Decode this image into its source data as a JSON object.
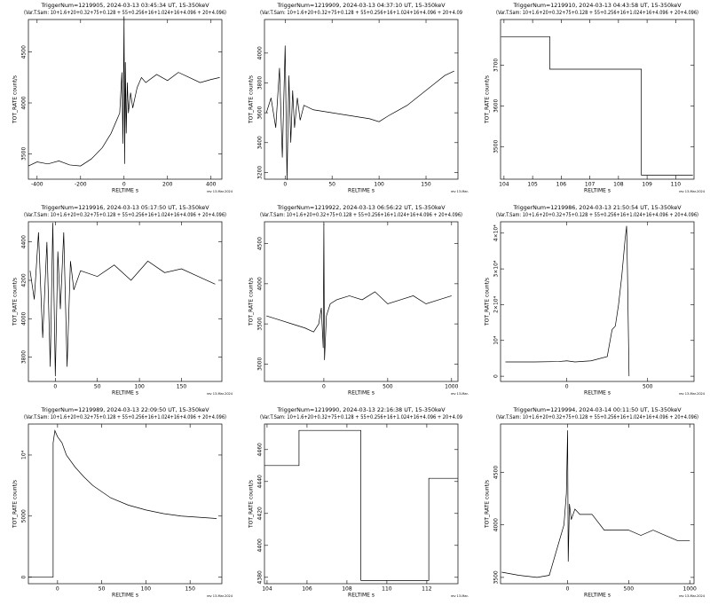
{
  "chart_data": [
    {
      "type": "line",
      "title": "TriggerNum=1219905, 2024-03-13 03:45:34 UT, 15-350keV",
      "subtitle": "(Var.T.Sam: 10+1.6+20+0.32+75+0.128  +  55+0.256+16+1.024+16+4.096  +  20+4.096)",
      "x_label": "RELTIME  s",
      "y_label": "TOT_RATE  count/s",
      "footer": "rev 13-Mar-2024",
      "color": "#000",
      "xlim": [
        -440,
        450
      ],
      "ylim": [
        3250,
        4820
      ],
      "xticks": [
        -400,
        -200,
        0,
        200,
        400
      ],
      "yticks": [
        3500,
        4000,
        4500
      ],
      "x": [
        -440,
        -400,
        -350,
        -300,
        -250,
        -200,
        -150,
        -100,
        -60,
        -40,
        -20,
        -10,
        -5,
        0,
        3,
        6,
        10,
        15,
        20,
        30,
        40,
        60,
        80,
        100,
        150,
        200,
        250,
        300,
        350,
        400,
        440
      ],
      "values": [
        3380,
        3420,
        3400,
        3430,
        3390,
        3380,
        3450,
        3560,
        3700,
        3800,
        3900,
        4300,
        3600,
        4850,
        3400,
        4400,
        3700,
        4200,
        3900,
        4100,
        3950,
        4150,
        4250,
        4200,
        4280,
        4220,
        4300,
        4250,
        4200,
        4230,
        4250
      ]
    },
    {
      "type": "line",
      "title": "TriggerNum=1219909, 2024-03-13 04:37:10 UT, 15-350keV",
      "subtitle": "(Var.T.Sam: 10+1.6+20+0.32+75+0.128  +  55+0.256+16+1.024+16+4.096  +  20+4.09",
      "x_label": "RELTIME  s",
      "y_label": "TOT_RATE  count/s",
      "footer": "rev 13-Mar-",
      "color": "#000",
      "xlim": [
        -22,
        184
      ],
      "ylim": [
        3155,
        4225
      ],
      "xticks": [
        0,
        50,
        100,
        150
      ],
      "yticks": [
        3200,
        3400,
        3600,
        3800,
        4000
      ],
      "x": [
        -20,
        -15,
        -10,
        -6,
        -3,
        0,
        2,
        4,
        6,
        8,
        10,
        13,
        16,
        20,
        30,
        50,
        70,
        90,
        100,
        110,
        130,
        150,
        160,
        170,
        180
      ],
      "values": [
        3600,
        3700,
        3500,
        3900,
        3300,
        4050,
        3150,
        3850,
        3400,
        3750,
        3500,
        3700,
        3550,
        3650,
        3620,
        3600,
        3580,
        3560,
        3540,
        3580,
        3650,
        3750,
        3800,
        3850,
        3880
      ]
    },
    {
      "type": "line",
      "title": "TriggerNum=1219910, 2024-03-13 04:43:58 UT, 15-350keV",
      "subtitle": "(Var.T.Sam: 10+1.6+20+0.32+75+0.128  +  55+0.256+16+1.024+16+4.096  +  20+4.096)",
      "x_label": "RELTIME  s",
      "y_label": "TOT_RATE  count/s",
      "footer": "rev 13-Mar-2024",
      "color": "#000",
      "xlim": [
        103.88,
        110.64
      ],
      "ylim": [
        3420,
        3812
      ],
      "xticks": [
        104,
        105,
        106,
        107,
        108,
        109,
        110
      ],
      "yticks": [
        3500,
        3600,
        3700
      ],
      "x": [
        103.9,
        105.6,
        105.6,
        108.8,
        108.8,
        110.6
      ],
      "values": [
        3770,
        3770,
        3690,
        3690,
        3430,
        3430
      ]
    },
    {
      "type": "line",
      "title": "TriggerNum=1219916, 2024-03-13 05:17:50 UT, 15-350keV",
      "subtitle": "(Var.T.Sam: 10+1.6+20+0.32+75+0.128  +  55+0.256+16+1.024+16+4.096  +  20+4.096)",
      "x_label": "RELTIME  s",
      "y_label": "TOT_RATE  count/s",
      "footer": "rev 13-Mar-2024",
      "color": "#000",
      "xlim": [
        -32,
        198
      ],
      "ylim": [
        3673,
        4505
      ],
      "xticks": [
        0,
        50,
        100,
        150
      ],
      "yticks": [
        3800,
        4000,
        4200,
        4400
      ],
      "x": [
        -30,
        -25,
        -20,
        -15,
        -10,
        -6,
        -3,
        0,
        3,
        6,
        10,
        14,
        18,
        22,
        30,
        50,
        70,
        90,
        110,
        130,
        150,
        170,
        190
      ],
      "values": [
        4250,
        4100,
        4450,
        3900,
        4400,
        3750,
        4500,
        3700,
        4350,
        4050,
        4450,
        3750,
        4300,
        4150,
        4250,
        4220,
        4280,
        4200,
        4300,
        4240,
        4260,
        4220,
        4180
      ]
    },
    {
      "type": "line",
      "title": "TriggerNum=1219922, 2024-03-13 06:56:22 UT, 15-350keV",
      "subtitle": "(Var.T.Sam: 10+1.6+20+0.32+75+0.128  +  55+0.256+16+1.024+16+4.096  +  20+4.096)",
      "x_label": "RELTIME  s",
      "y_label": "TOT_RATE  count/s",
      "footer": "rev 13-Mar-",
      "color": "#000",
      "xlim": [
        -465,
        1050
      ],
      "ylim": [
        2783,
        4772
      ],
      "xticks": [
        0,
        500,
        1000
      ],
      "yticks": [
        3000,
        3500,
        4000,
        4500
      ],
      "x": [
        -450,
        -350,
        -250,
        -150,
        -80,
        -40,
        -20,
        -5,
        0,
        5,
        20,
        50,
        100,
        200,
        300,
        400,
        500,
        600,
        700,
        800,
        900,
        1000
      ],
      "values": [
        3600,
        3550,
        3500,
        3450,
        3400,
        3500,
        3700,
        3200,
        4750,
        3050,
        3600,
        3750,
        3800,
        3850,
        3800,
        3900,
        3750,
        3800,
        3850,
        3750,
        3800,
        3850
      ]
    },
    {
      "type": "line",
      "title": "TriggerNum=1219986, 2024-03-13 21:50:54 UT, 15-350keV",
      "subtitle": "(Var.T.Sam: 10+1.6+20+0.32+75+0.128  +  55+0.256+16+1.024+16+4.096  +  20+4.096)",
      "x_label": "RELTIME  s",
      "y_label": "TOT_RATE  count/s",
      "footer": "rev 13-Mar-2024",
      "color": "#000",
      "xlim": [
        -410,
        787
      ],
      "ylim": [
        -1460,
        43170
      ],
      "xticks": [
        0,
        500
      ],
      "yticks": [
        0,
        {
          "value": 10000,
          "label": "10⁴"
        },
        {
          "value": 20000,
          "label": "2×10⁴"
        },
        {
          "value": 30000,
          "label": "3×10⁴"
        },
        {
          "value": 40000,
          "label": "4×10⁴"
        }
      ],
      "x": [
        -380,
        -200,
        -50,
        0,
        50,
        150,
        250,
        280,
        300,
        320,
        340,
        360,
        370,
        375,
        385
      ],
      "values": [
        4000,
        4000,
        4100,
        4300,
        4000,
        4300,
        5500,
        13000,
        14000,
        20000,
        28000,
        38000,
        42000,
        30000,
        0
      ]
    },
    {
      "type": "line",
      "title": "TriggerNum=1219989, 2024-03-13 22:09:50 UT, 15-350keV",
      "subtitle": "(Var.T.Sam: 10+1.6+20+0.32+75+0.128  +  55+0.256+16+1.024+16+4.096  +  20+4.096)",
      "x_label": "RELTIME  s",
      "y_label": "TOT_RATE  count/s",
      "footer": "rev 13-Mar-2024",
      "color": "#000",
      "xlim": [
        -33,
        186
      ],
      "ylim": [
        -540,
        12540
      ],
      "xticks": [
        0,
        50,
        100,
        150
      ],
      "yticks": [
        0,
        5000,
        {
          "value": 10000,
          "label": "10⁴"
        }
      ],
      "x": [
        -33,
        -5,
        -5,
        -3,
        0,
        5,
        10,
        20,
        30,
        40,
        50,
        60,
        80,
        100,
        120,
        140,
        160,
        180
      ],
      "values": [
        0,
        0,
        11000,
        12000,
        11500,
        11000,
        10000,
        9000,
        8200,
        7500,
        7000,
        6500,
        5900,
        5500,
        5200,
        5000,
        4900,
        4800
      ]
    },
    {
      "type": "line",
      "title": "TriggerNum=1219990, 2024-03-13 22:16:38 UT, 15-350keV",
      "subtitle": "(Var.T.Sam: 10+1.6+20+0.32+75+0.128  +  55+0.256+16+1.024+16+4.096  +  20+4.09",
      "x_label": "RELTIME  s",
      "y_label": "TOT_RATE  count/s",
      "footer": "rev 13-Mar-",
      "color": "#000",
      "xlim": [
        103.87,
        113.56
      ],
      "ylim": [
        4376,
        4476
      ],
      "xticks": [
        104,
        106,
        108,
        110,
        112
      ],
      "yticks": [
        4380,
        4400,
        4420,
        4440,
        4460
      ],
      "x": [
        103.87,
        105.6,
        105.6,
        108.7,
        108.7,
        112.1,
        112.1,
        113.56
      ],
      "values": [
        4450,
        4450,
        4472,
        4472,
        4378,
        4378,
        4442,
        4442
      ]
    },
    {
      "type": "line",
      "title": "TriggerNum=1219994, 2024-03-14 00:11:50 UT, 15-350keV",
      "subtitle": "(Var.T.Sam: 10+1.6+20+0.32+75+0.128  +  55+0.256+16+1.024+16+4.096  +  20+4.096)",
      "x_label": "RELTIME  s",
      "y_label": "TOT_RATE  count/s",
      "footer": "rev 13-Mar-2024",
      "color": "#000",
      "xlim": [
        -549,
        1035
      ],
      "ylim": [
        3440,
        4960
      ],
      "xticks": [
        0,
        500,
        1000
      ],
      "yticks": [
        3500,
        4000,
        4500
      ],
      "x": [
        -540,
        -400,
        -250,
        -150,
        -80,
        -30,
        -10,
        0,
        5,
        15,
        30,
        60,
        100,
        200,
        300,
        400,
        500,
        600,
        700,
        800,
        900,
        1000
      ],
      "values": [
        3550,
        3520,
        3500,
        3520,
        3800,
        4000,
        4300,
        4900,
        3650,
        4200,
        4050,
        4150,
        4100,
        4100,
        3950,
        3950,
        3950,
        3900,
        3950,
        3900,
        3850,
        3850
      ]
    }
  ]
}
